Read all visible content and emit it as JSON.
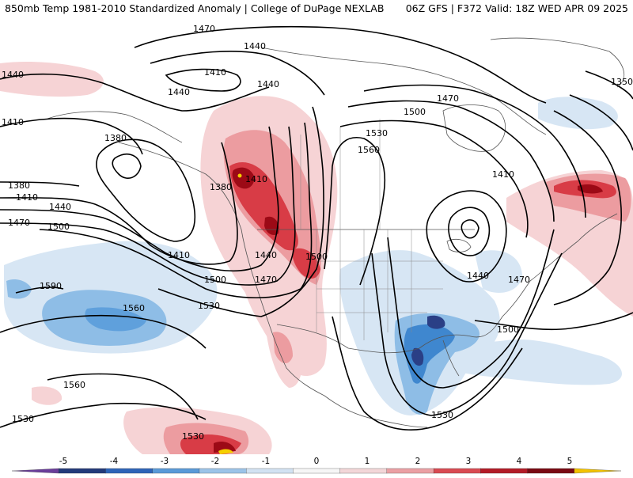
{
  "header": {
    "left_title": "850mb Temp 1981-2010 Standardized Anomaly | College of DuPage NEXLAB",
    "right_title": "06Z GFS | F372 Valid: 18Z WED APR 09 2025"
  },
  "contour_labels": [
    "1470",
    "1440",
    "1410",
    "1440",
    "1440",
    "1350",
    "1410",
    "1380",
    "1530",
    "1470",
    "1500",
    "1560",
    "1440",
    "1410",
    "1380",
    "1410",
    "1410",
    "1380",
    "1440",
    "1470",
    "1500",
    "1440",
    "1500",
    "1410",
    "1470",
    "1500",
    "1440",
    "1470",
    "1590",
    "1560",
    "1530",
    "1500",
    "1560",
    "1530",
    "1530",
    "1530"
  ],
  "colorbar": {
    "ticks": [
      "-5",
      "-4",
      "-3",
      "-2",
      "-1",
      "0",
      "1",
      "2",
      "3",
      "4",
      "5"
    ],
    "colors": [
      "#6a3d9a",
      "#233a7a",
      "#2e64b8",
      "#5a9ad8",
      "#9cc3e8",
      "#d2e2f2",
      "#f6f6f6",
      "#f3d6d8",
      "#eba0a4",
      "#d94a52",
      "#b31a26",
      "#7a0812",
      "#f2c200"
    ]
  },
  "colors": {
    "warm_light": "#f6d3d5",
    "warm_mid": "#ec9ca0",
    "warm_strong": "#d83c46",
    "warm_extreme": "#9c0a16",
    "cold_light": "#d7e6f4",
    "cold_mid": "#8ebde6",
    "cold_strong": "#3f87cf",
    "cold_extreme": "#2a3f86",
    "yellow": "#f5d000"
  }
}
